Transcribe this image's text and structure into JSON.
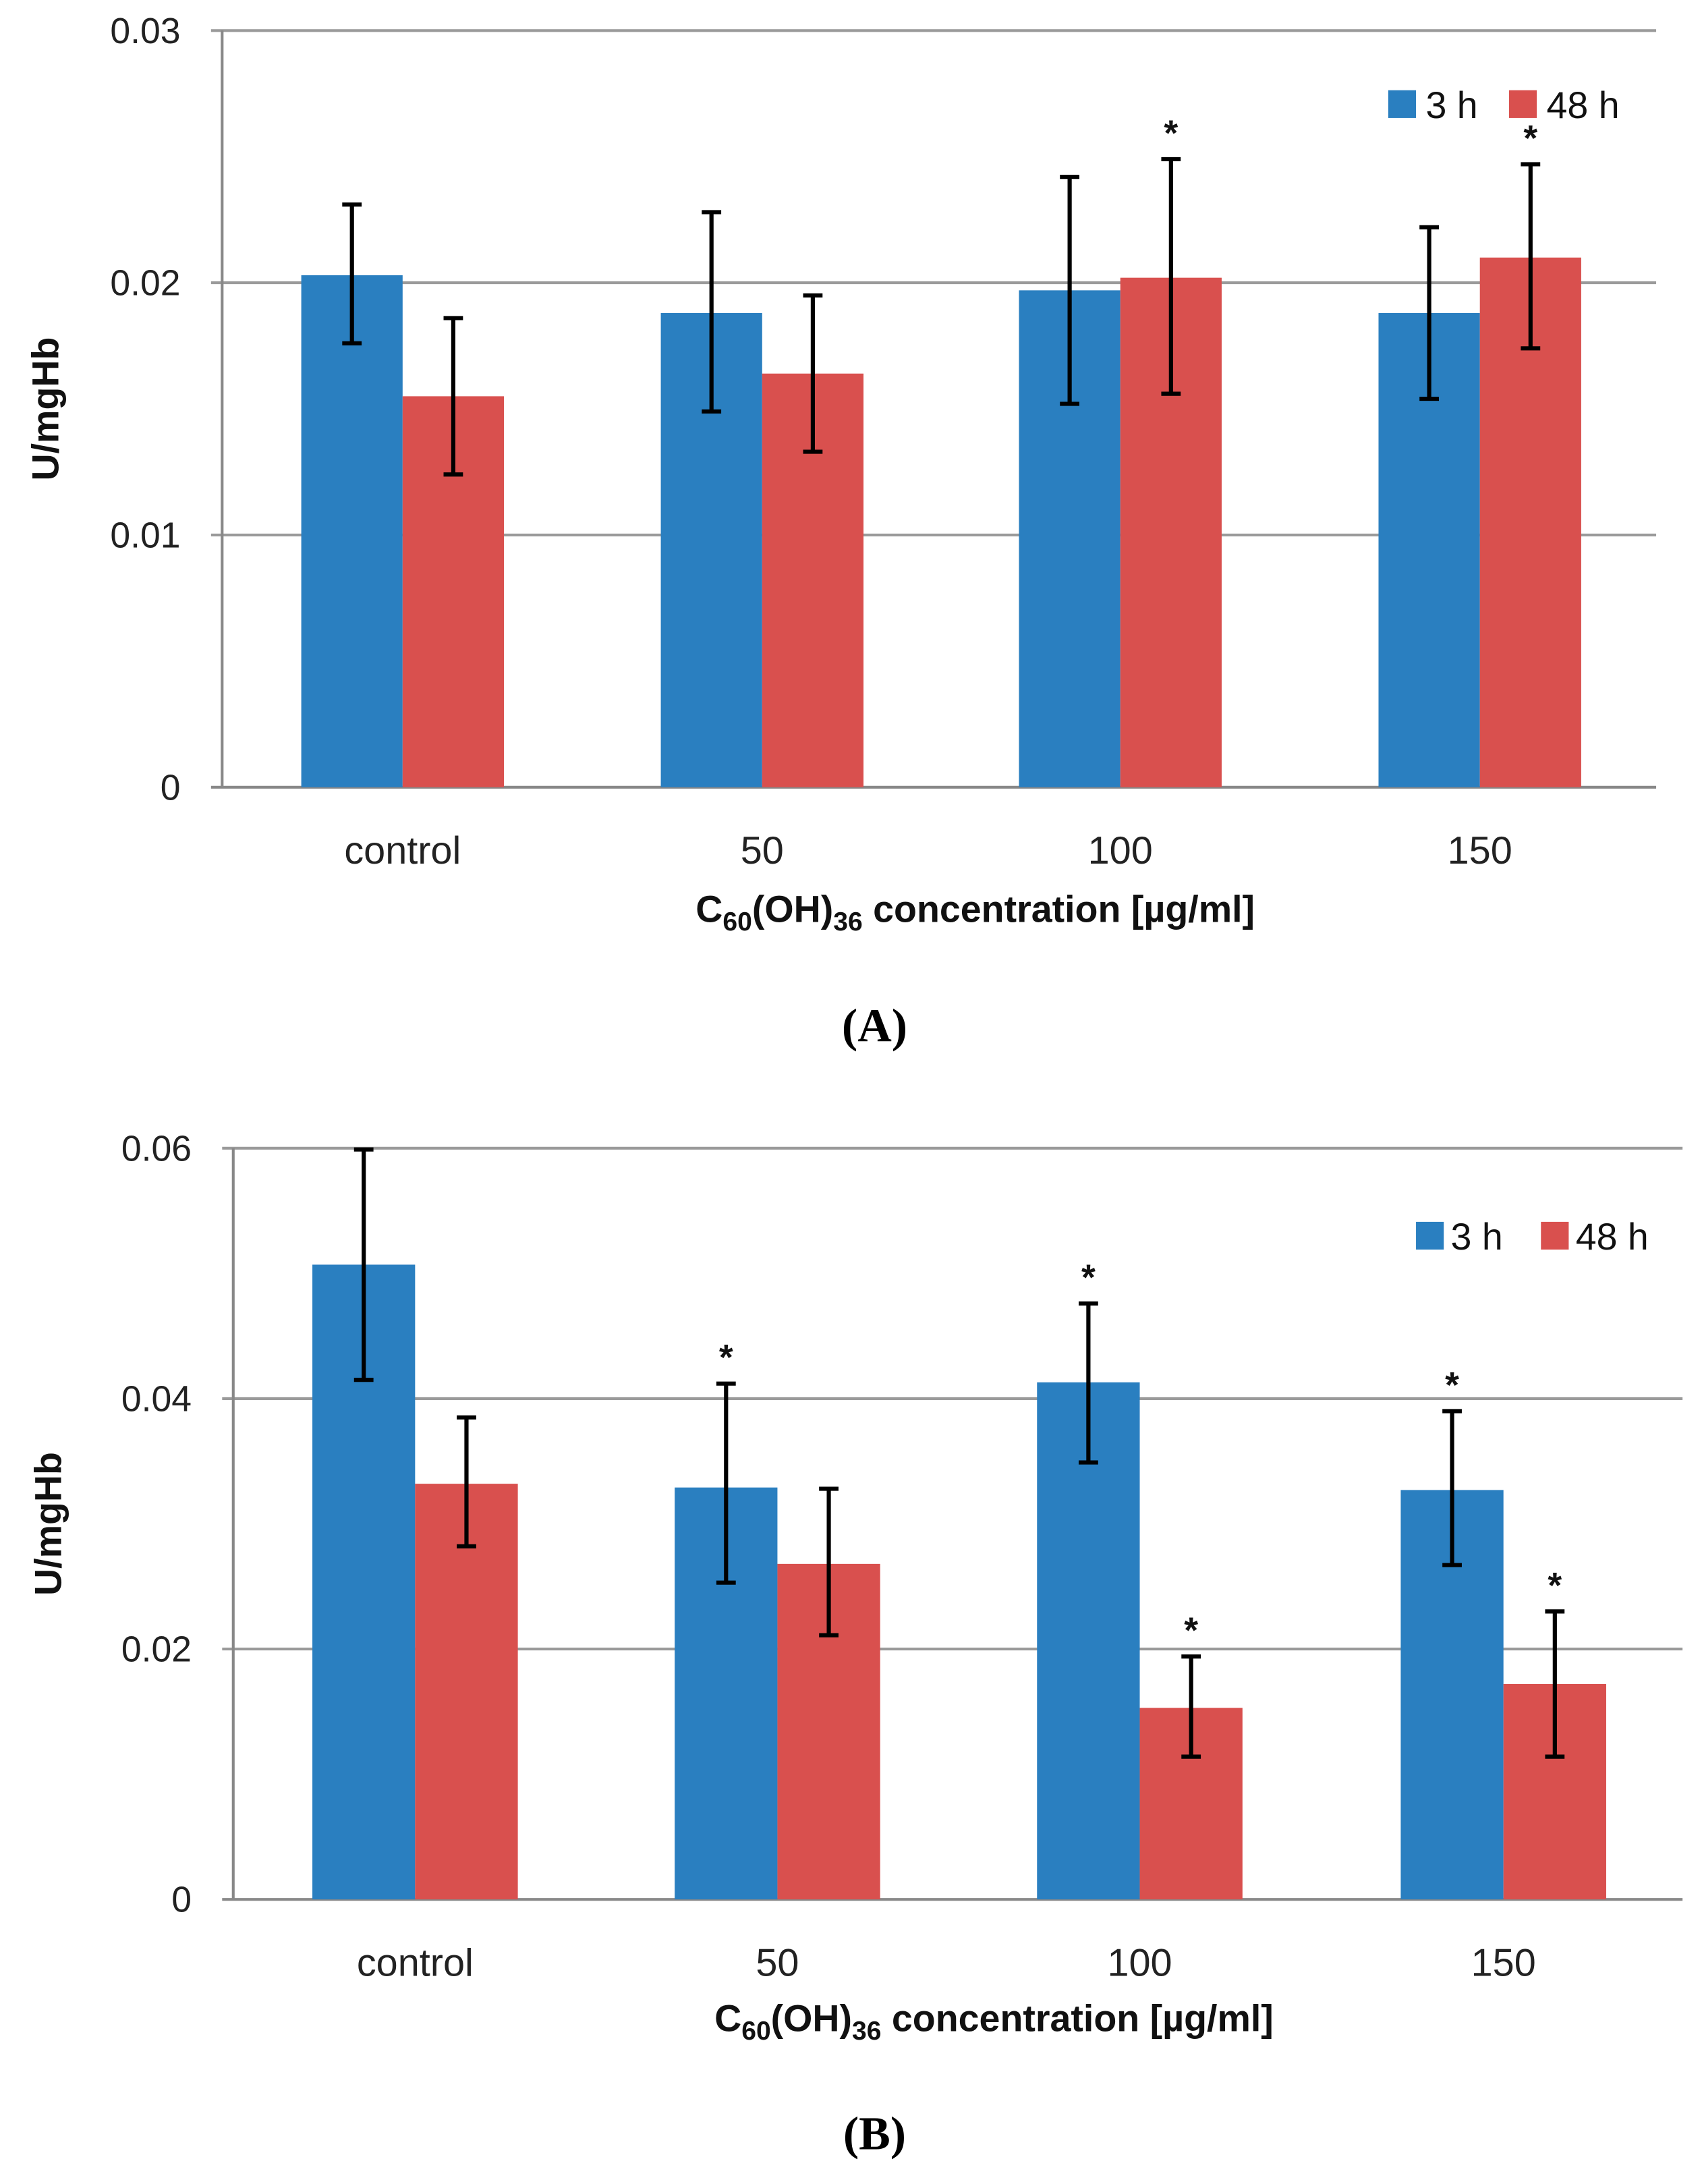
{
  "chart_data": [
    {
      "type": "bar",
      "panel_label": "(A)",
      "title": "",
      "categories": [
        "control",
        "50",
        "100",
        "150"
      ],
      "xlabel": {
        "base": "C",
        "sub1": "60",
        "mid": "(OH)",
        "sub2": "36",
        "rest": " concentration  [µg/ml]"
      },
      "ylabel": "U/mgHb",
      "ylim": [
        0,
        0.03
      ],
      "yticks": [
        "0",
        "0.01",
        "0.02",
        "0.03"
      ],
      "ytick_values": [
        0,
        0.01,
        0.02,
        0.03
      ],
      "grid": true,
      "legend_position": "top-right",
      "series": [
        {
          "name": "3 h",
          "color": "#2a7fc0",
          "values": [
            0.0203,
            0.0188,
            0.0197,
            0.0188
          ],
          "err_high": [
            0.0231,
            0.0228,
            0.0242,
            0.0222
          ],
          "err_low": [
            0.0176,
            0.0149,
            0.0152,
            0.0154
          ],
          "significant": [
            false,
            false,
            false,
            false
          ]
        },
        {
          "name": "48 h",
          "color": "#d9504e",
          "values": [
            0.0155,
            0.0164,
            0.0202,
            0.021
          ],
          "err_high": [
            0.0186,
            0.0195,
            0.0249,
            0.0247
          ],
          "err_low": [
            0.0124,
            0.0133,
            0.0156,
            0.0174
          ],
          "significant": [
            false,
            false,
            true,
            true
          ]
        }
      ],
      "significance_marker": "*"
    },
    {
      "type": "bar",
      "panel_label": "(B)",
      "title": "",
      "categories": [
        "control",
        "50",
        "100",
        "150"
      ],
      "xlabel": {
        "base": "C",
        "sub1": "60",
        "mid": "(OH)",
        "sub2": "36",
        "rest": " concentration  [µg/ml]"
      },
      "ylabel": "U/mgHb",
      "ylim": [
        0,
        0.06
      ],
      "yticks": [
        "0",
        "0.02",
        "0.04",
        "0.06"
      ],
      "ytick_values": [
        0,
        0.02,
        0.04,
        0.06
      ],
      "grid": true,
      "legend_position": "top-right",
      "series": [
        {
          "name": "3 h",
          "color": "#2a7fc0",
          "values": [
            0.0507,
            0.0329,
            0.0413,
            0.0327
          ],
          "err_high": [
            0.0599,
            0.0412,
            0.0476,
            0.039
          ],
          "err_low": [
            0.0415,
            0.0253,
            0.0349,
            0.0267
          ],
          "significant": [
            false,
            true,
            true,
            true
          ]
        },
        {
          "name": "48 h",
          "color": "#d9504e",
          "values": [
            0.0332,
            0.0268,
            0.0153,
            0.0172
          ],
          "err_high": [
            0.0385,
            0.0328,
            0.0194,
            0.023
          ],
          "err_low": [
            0.0282,
            0.0211,
            0.0114,
            0.0114
          ],
          "significant": [
            false,
            false,
            true,
            true
          ]
        }
      ],
      "significance_marker": "*"
    }
  ]
}
